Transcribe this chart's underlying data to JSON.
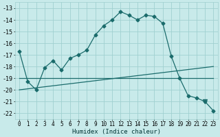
{
  "xlabel": "Humidex (Indice chaleur)",
  "background_color": "#c8eaea",
  "grid_color": "#a0d0d0",
  "line_color": "#1a6b6b",
  "xlim": [
    -0.5,
    23.5
  ],
  "ylim": [
    -22.5,
    -12.5
  ],
  "yticks": [
    -13,
    -14,
    -15,
    -16,
    -17,
    -18,
    -19,
    -20,
    -21,
    -22
  ],
  "xticks": [
    0,
    1,
    2,
    3,
    4,
    5,
    6,
    7,
    8,
    9,
    10,
    11,
    12,
    13,
    14,
    15,
    16,
    17,
    18,
    19,
    20,
    21,
    22,
    23
  ],
  "series_main": [
    [
      0,
      -16.7
    ],
    [
      1,
      -19.3
    ],
    [
      2,
      -20.0
    ],
    [
      3,
      -18.1
    ],
    [
      4,
      -17.5
    ],
    [
      5,
      -18.3
    ],
    [
      6,
      -17.3
    ],
    [
      7,
      -17.0
    ],
    [
      8,
      -16.6
    ],
    [
      9,
      -15.3
    ],
    [
      10,
      -14.5
    ],
    [
      11,
      -14.0
    ],
    [
      12,
      -13.3
    ],
    [
      13,
      -13.6
    ],
    [
      14,
      -14.0
    ],
    [
      15,
      -13.6
    ],
    [
      16,
      -13.7
    ],
    [
      17,
      -14.3
    ],
    [
      18,
      -17.1
    ],
    [
      19,
      -19.0
    ],
    [
      20,
      -20.5
    ],
    [
      21,
      -20.7
    ],
    [
      22,
      -21.0
    ],
    [
      23,
      -21.8
    ]
  ],
  "line_flat": [
    [
      0,
      -19.0
    ],
    [
      23,
      -19.0
    ]
  ],
  "line_rising": [
    [
      0,
      -20.0
    ],
    [
      23,
      -18.0
    ]
  ],
  "triangle_x": 22,
  "triangle_y": -21.0,
  "marker_size": 2.5,
  "linewidth": 0.9,
  "tick_fontsize": 5.5,
  "xlabel_fontsize": 6.5
}
